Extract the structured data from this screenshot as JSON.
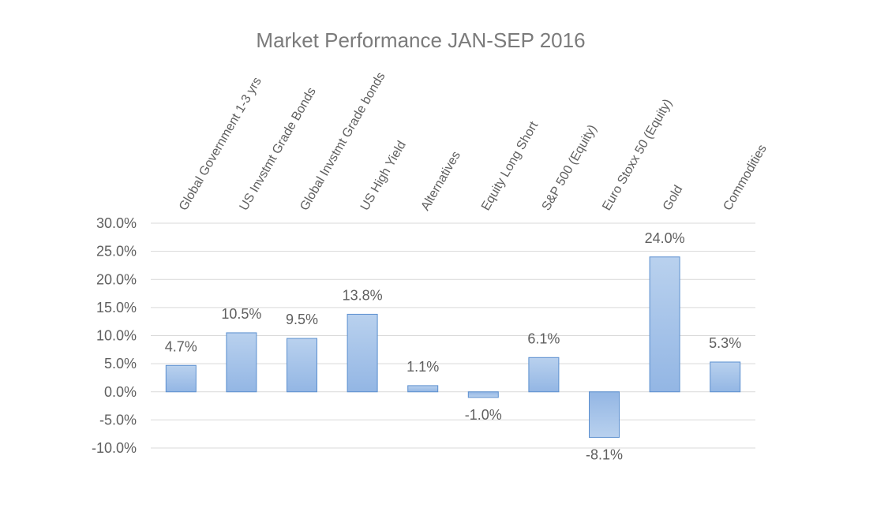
{
  "chart_data": {
    "type": "bar",
    "title": "Market Performance JAN-SEP 2016",
    "xlabel": "",
    "ylabel": "",
    "categories": [
      "Global Government 1-3 yrs",
      "US Invstmt Grade Bonds",
      "Global Invstmt Grade bonds",
      "US High Yield",
      "Alternatives",
      "Equity Long Short",
      "S&P 500 (Equity)",
      "Euro Stoxx 50 (Equity)",
      "Gold",
      "Commodities"
    ],
    "values": [
      4.7,
      10.5,
      9.5,
      13.8,
      1.1,
      -1.0,
      6.1,
      -8.1,
      24.0,
      5.3
    ],
    "value_labels": [
      "4.7%",
      "10.5%",
      "9.5%",
      "13.8%",
      "1.1%",
      "-1.0%",
      "6.1%",
      "-8.1%",
      "24.0%",
      "5.3%"
    ],
    "ylim": [
      -10,
      30
    ],
    "yticks": [
      30,
      25,
      20,
      15,
      10,
      5,
      0,
      -5,
      -10
    ],
    "ytick_labels": [
      "30.0%",
      "25.0%",
      "20.0%",
      "15.0%",
      "10.0%",
      "5.0%",
      "0.0%",
      "-5.0%",
      "-10.0%"
    ],
    "grid": true,
    "legend": "none",
    "bar_fill_top": "#b9d1ee",
    "bar_fill_bottom": "#93b6e4",
    "bar_stroke": "#5b8fcf"
  }
}
